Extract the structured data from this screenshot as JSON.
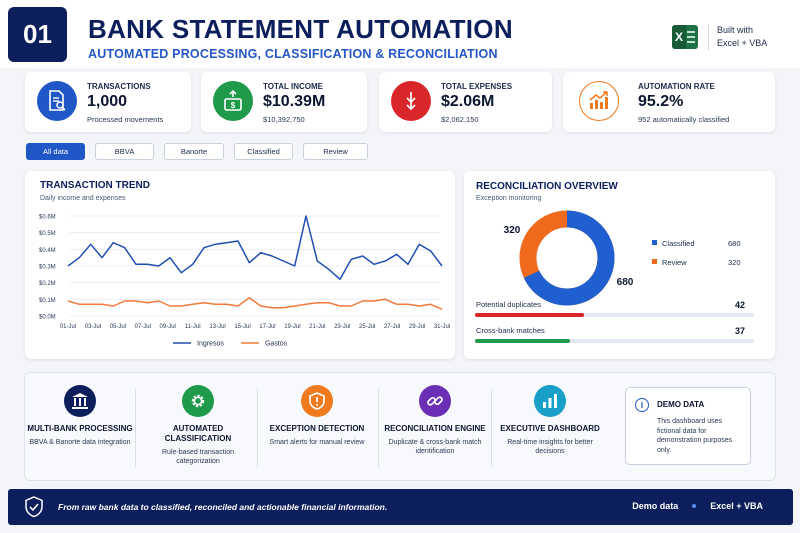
{
  "header": {
    "number": "01",
    "title": "BANK STATEMENT AUTOMATION",
    "subtitle": "AUTOMATED PROCESSING, CLASSIFICATION & RECONCILIATION",
    "built_line1": "Built with",
    "built_line2": "Excel + VBA"
  },
  "kpis": [
    {
      "label": "TRANSACTIONS",
      "value": "1,000",
      "sub": "Processed movements",
      "icon": "document-search-icon",
      "color": "#1f57c7"
    },
    {
      "label": "TOTAL INCOME",
      "value": "$10.39M",
      "sub": "$10,392,750",
      "icon": "money-up-icon",
      "color": "#1f9a4b"
    },
    {
      "label": "TOTAL EXPENSES",
      "value": "$2.06M",
      "sub": "$2,062,150",
      "icon": "money-down-icon",
      "color": "#d9262b"
    },
    {
      "label": "AUTOMATION RATE",
      "value": "95.2%",
      "sub": "952 automatically classified",
      "icon": "growth-chart-icon",
      "color": "#f07a1e"
    }
  ],
  "filters": [
    "All data",
    "BBVA",
    "Banorte",
    "Classified",
    "Review"
  ],
  "trend": {
    "title": "TRANSACTION TREND",
    "subtitle": "Daily income and expenses"
  },
  "chart_data": {
    "type": "line",
    "title": "TRANSACTION TREND",
    "subtitle": "Daily income and expenses",
    "x_ticks": [
      "01-Jul",
      "03-Jul",
      "05-Jul",
      "07-Jul",
      "09-Jul",
      "11-Jul",
      "13-Jul",
      "15-Jul",
      "17-Jul",
      "19-Jul",
      "21-Jul",
      "23-Jul",
      "25-Jul",
      "27-Jul",
      "29-Jul",
      "31-Jul"
    ],
    "y_ticks": [
      "$0.0M",
      "$0.1M",
      "$0.2M",
      "$0.3M",
      "$0.4M",
      "$0.5M",
      "$0.6M"
    ],
    "ylim": [
      0,
      0.6
    ],
    "series": [
      {
        "name": "Ingresos",
        "color": "#1f4fb0",
        "values": [
          0.3,
          0.35,
          0.43,
          0.35,
          0.44,
          0.41,
          0.31,
          0.31,
          0.3,
          0.35,
          0.26,
          0.31,
          0.41,
          0.43,
          0.44,
          0.45,
          0.32,
          0.38,
          0.36,
          0.33,
          0.3,
          0.6,
          0.33,
          0.28,
          0.22,
          0.34,
          0.36,
          0.31,
          0.33,
          0.37,
          0.31,
          0.43,
          0.39,
          0.3
        ]
      },
      {
        "name": "Gastos",
        "color": "#f07a3a",
        "values": [
          0.09,
          0.07,
          0.07,
          0.07,
          0.06,
          0.09,
          0.09,
          0.08,
          0.09,
          0.06,
          0.06,
          0.07,
          0.08,
          0.07,
          0.07,
          0.06,
          0.11,
          0.06,
          0.05,
          0.05,
          0.06,
          0.07,
          0.08,
          0.08,
          0.06,
          0.06,
          0.09,
          0.09,
          0.1,
          0.07,
          0.07,
          0.06,
          0.07,
          0.04
        ]
      }
    ]
  },
  "recon": {
    "title": "RECONCILIATION OVERVIEW",
    "subtitle": "Exception monitoring",
    "classified_label": "Classified",
    "classified_value": "680",
    "review_label": "Review",
    "review_value": "320",
    "donut_left": "320",
    "donut_right": "680",
    "classified_color": "#1f5fd0",
    "review_color": "#f06a1e",
    "dup_label": "Potential duplicates",
    "dup_value": "42",
    "dup_fraction": 0.39,
    "cross_label": "Cross-bank matches",
    "cross_value": "37",
    "cross_fraction": 0.34
  },
  "features": [
    {
      "title": "MULTI-BANK PROCESSING",
      "desc": "BBVA & Banorte data integration",
      "icon": "bank-icon",
      "color": "#0c1f5c"
    },
    {
      "title": "AUTOMATED CLASSIFICATION",
      "desc": "Rule-based transaction categorization",
      "icon": "gear-icon",
      "color": "#1f9a4b"
    },
    {
      "title": "EXCEPTION DETECTION",
      "desc": "Smart alerts for manual review",
      "icon": "shield-alert-icon",
      "color": "#f07a1e"
    },
    {
      "title": "RECONCILIATION ENGINE",
      "desc": "Duplicate & cross-bank match identification",
      "icon": "link-icon",
      "color": "#6a2fb5"
    },
    {
      "title": "EXECUTIVE DASHBOARD",
      "desc": "Real-time insights for better decisions",
      "icon": "bar-chart-icon",
      "color": "#1aa0c8"
    }
  ],
  "demo": {
    "title": "DEMO DATA",
    "text": "This dashboard uses fictional data for demonstration purposes only."
  },
  "footer": {
    "text": "From raw bank data to classified, reconciled and actionable financial information.",
    "right1": "Demo data",
    "right2": "Excel + VBA"
  }
}
